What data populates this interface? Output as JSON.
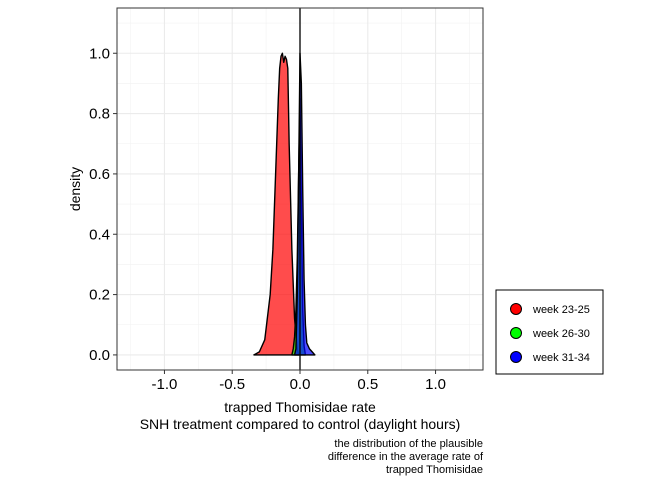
{
  "chart_data": {
    "type": "area",
    "xlabel": "trapped Thomisidae rate",
    "xlabel_line2": "SNH treatment compared to control (daylight hours)",
    "ylabel": "density",
    "caption": [
      "the distribution of the plausible",
      "difference in the average rate of",
      "trapped Thomisidae"
    ],
    "xlim": [
      -1.35,
      1.35
    ],
    "ylim": [
      -0.05,
      1.15
    ],
    "x_ticks": [
      -1.0,
      -0.5,
      0.0,
      0.5,
      1.0
    ],
    "x_tick_labels": [
      "-1.0",
      "-0.5",
      "0.0",
      "0.5",
      "1.0"
    ],
    "y_ticks": [
      0.0,
      0.2,
      0.4,
      0.6,
      0.8,
      1.0
    ],
    "y_tick_labels": [
      "0.0",
      "0.2",
      "0.4",
      "0.6",
      "0.8",
      "1.0"
    ],
    "grid": true,
    "vline_x": 0.0,
    "legend_position": "right",
    "series": [
      {
        "name": "week 23-25",
        "color": "#ff0000",
        "x": [
          -0.34,
          -0.3,
          -0.26,
          -0.22,
          -0.2,
          -0.18,
          -0.16,
          -0.15,
          -0.14,
          -0.13,
          -0.12,
          -0.11,
          -0.1,
          -0.09,
          -0.08,
          -0.06,
          -0.04,
          -0.02,
          -0.01
        ],
        "y": [
          0.0,
          0.01,
          0.05,
          0.2,
          0.35,
          0.6,
          0.85,
          0.95,
          0.99,
          1.0,
          0.97,
          0.99,
          0.98,
          0.95,
          0.7,
          0.35,
          0.12,
          0.02,
          0.0
        ]
      },
      {
        "name": "week 26-30",
        "color": "#00ff00",
        "x": [
          -0.06,
          -0.05,
          -0.04,
          -0.03,
          -0.02,
          -0.01,
          0.0,
          0.01,
          0.02,
          0.03,
          0.04
        ],
        "y": [
          0.0,
          0.02,
          0.06,
          0.15,
          0.32,
          0.6,
          0.85,
          0.5,
          0.15,
          0.03,
          0.0
        ]
      },
      {
        "name": "week 31-34",
        "color": "#0000ff",
        "x": [
          -0.04,
          -0.03,
          -0.02,
          -0.01,
          0.0,
          0.01,
          0.02,
          0.03,
          0.04,
          0.05,
          0.07,
          0.09,
          0.11
        ],
        "y": [
          0.0,
          0.02,
          0.2,
          0.6,
          1.0,
          0.9,
          0.55,
          0.25,
          0.1,
          0.04,
          0.02,
          0.01,
          0.0
        ]
      }
    ]
  }
}
